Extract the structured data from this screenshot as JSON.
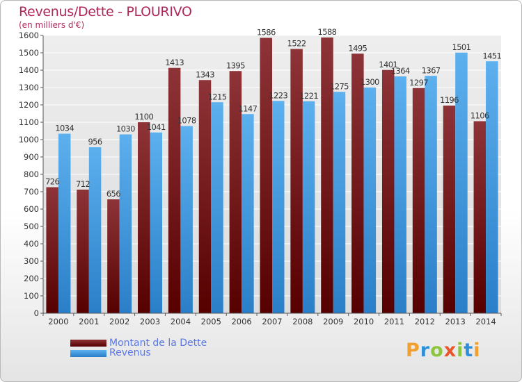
{
  "colors": {
    "dette": "#7a1e22",
    "revenus": "#3d9ae0",
    "title": "#b0285a",
    "legend_text": "#5a78e6"
  },
  "chart_data": {
    "type": "bar",
    "title": "Revenus/Dette - PLOURIVO",
    "subtitle": "(en milliers d'€)",
    "xlabel": "",
    "ylabel": "",
    "ylim": [
      0,
      1600
    ],
    "yticks": [
      0,
      100,
      200,
      300,
      400,
      500,
      600,
      700,
      800,
      900,
      1000,
      1100,
      1200,
      1300,
      1400,
      1500,
      1600
    ],
    "grid": true,
    "legend_position": "bottom-left",
    "categories": [
      "2000",
      "2001",
      "2002",
      "2003",
      "2004",
      "2005",
      "2006",
      "2007",
      "2008",
      "2009",
      "2010",
      "2011",
      "2012",
      "2013",
      "2014"
    ],
    "series": [
      {
        "name": "Montant de la Dette",
        "values": [
          726,
          712,
          656,
          1100,
          1413,
          1343,
          1395,
          1586,
          1522,
          1588,
          1495,
          1401,
          1297,
          1196,
          1106
        ]
      },
      {
        "name": "Revenus",
        "values": [
          1034,
          956,
          1030,
          1041,
          1078,
          1215,
          1147,
          1223,
          1221,
          1275,
          1300,
          1364,
          1367,
          1501,
          1451
        ]
      }
    ]
  },
  "logo": {
    "letters": [
      {
        "char": "P",
        "color": "#f0a030"
      },
      {
        "char": "r",
        "color": "#2f8fd8"
      },
      {
        "char": "o",
        "color": "#8cc63f"
      },
      {
        "char": "x",
        "color": "#e8562a"
      },
      {
        "char": "i",
        "color": "#8cc63f"
      },
      {
        "char": "t",
        "color": "#2f8fd8"
      },
      {
        "char": "i",
        "color": "#f0a030"
      }
    ]
  }
}
